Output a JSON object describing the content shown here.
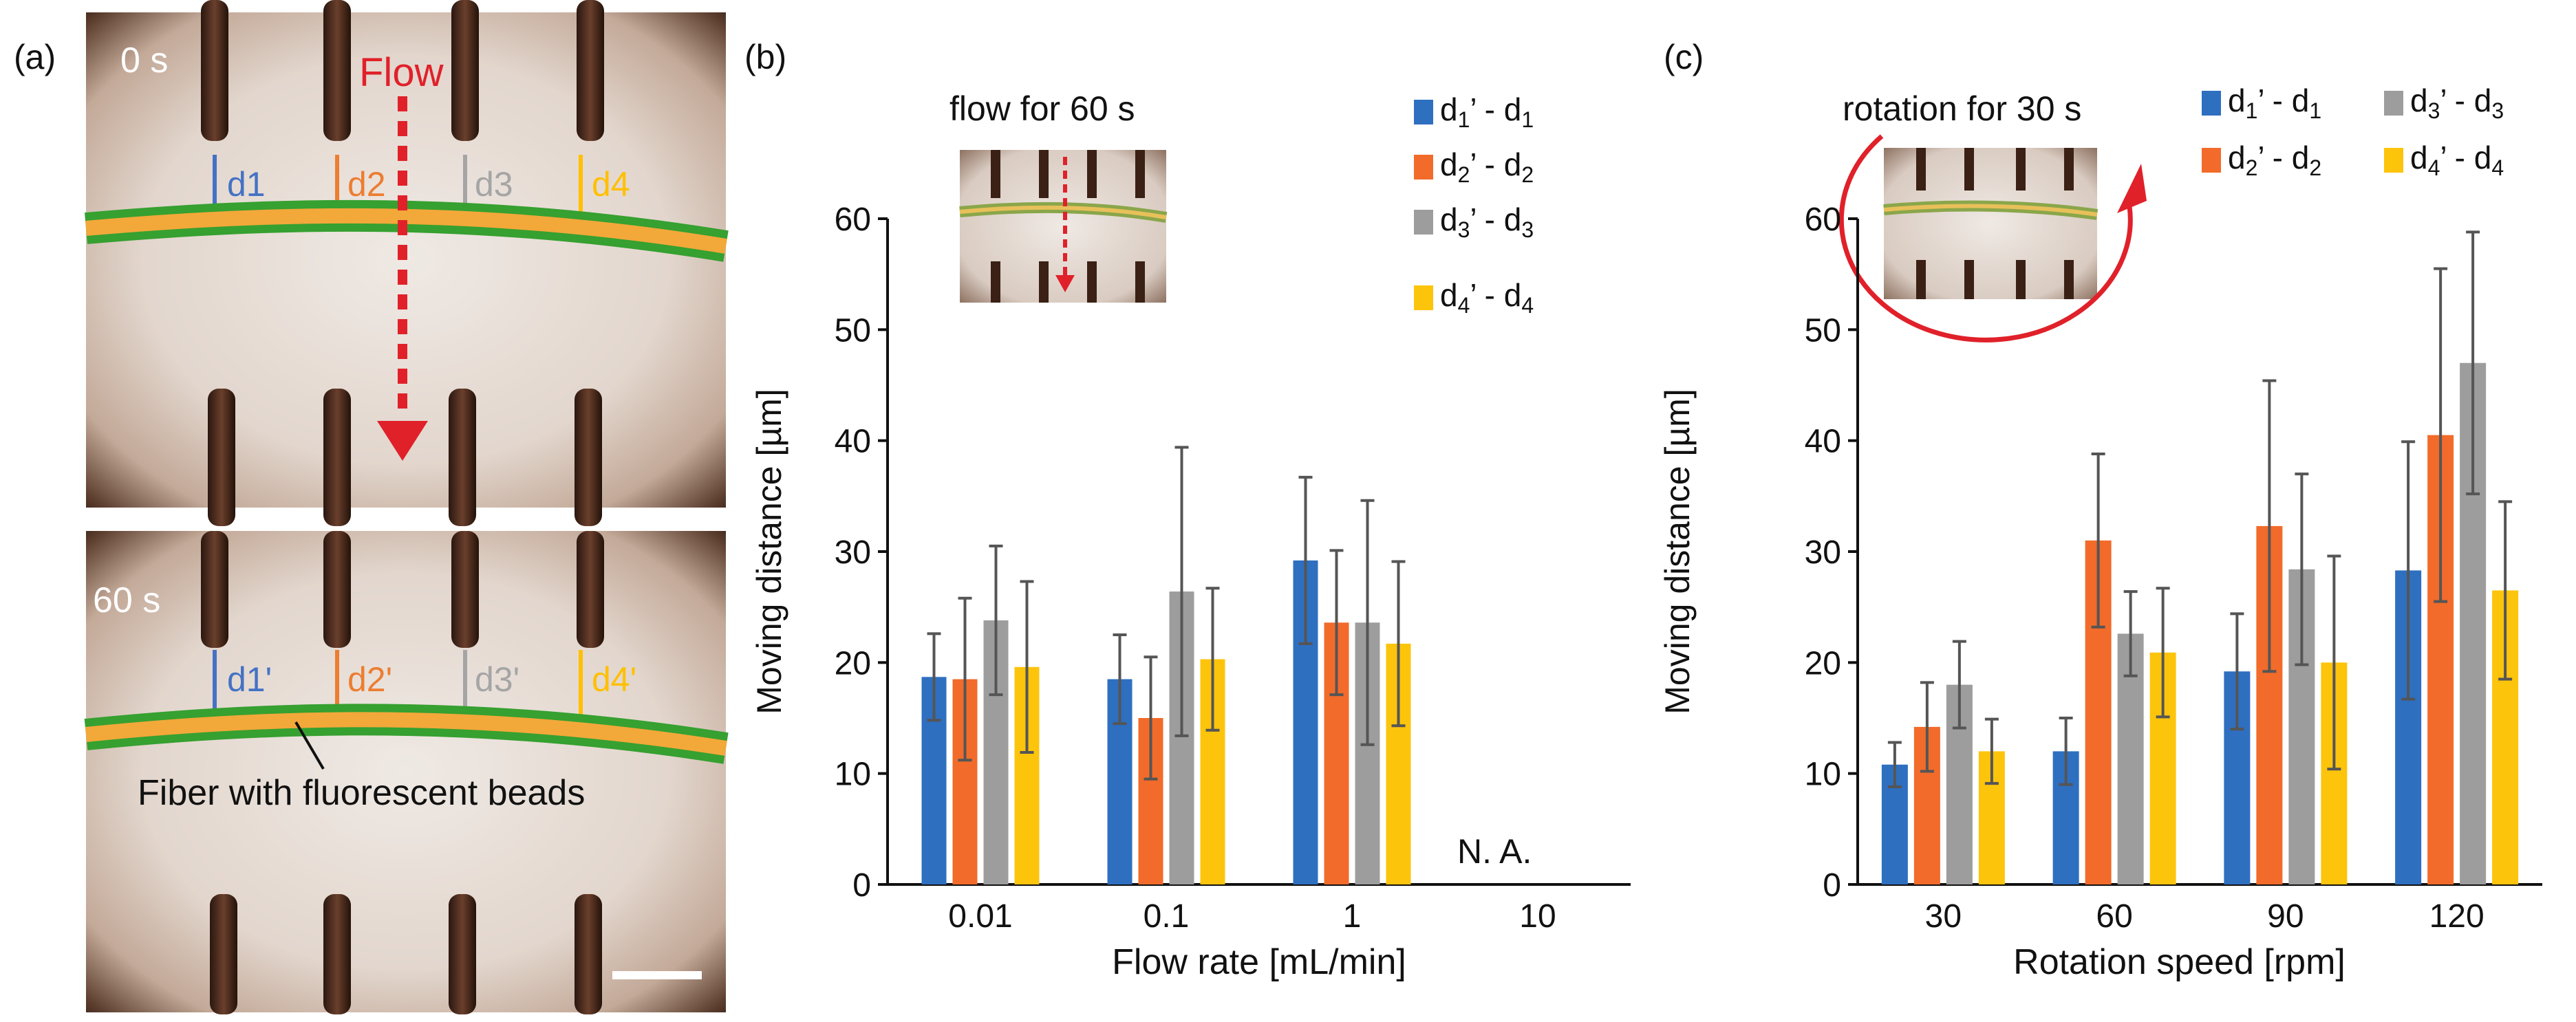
{
  "panel_a": {
    "label": "(a)",
    "top_time": "0 s",
    "bottom_time": "60 s",
    "flow_label": "Flow",
    "fiber_caption": "Fiber with fluorescent beads",
    "distance_labels_top": [
      "d1",
      "d2",
      "d3",
      "d4"
    ],
    "distance_labels_bottom": [
      "d1'",
      "d2'",
      "d3'",
      "d4'"
    ],
    "colors": [
      "#4472c4",
      "#ed7d31",
      "#a5a5a5",
      "#ffc000"
    ]
  },
  "panel_b": {
    "label": "(b)",
    "inset_caption": "flow for 60 s",
    "na_label": "N. A."
  },
  "panel_c": {
    "label": "(c)",
    "inset_caption": "rotation for 30 s"
  },
  "chart_data": [
    {
      "type": "bar",
      "panel": "b",
      "title": "",
      "xlabel": "Flow rate [mL/min]",
      "ylabel": "Moving distance [µm]",
      "ylim": [
        0,
        60
      ],
      "yticks": [
        0,
        10,
        20,
        30,
        40,
        50,
        60
      ],
      "categories": [
        "0.01",
        "0.1",
        "1",
        "10"
      ],
      "legend_position": "top-right",
      "series": [
        {
          "name": "d1’ - d1",
          "color": "#2e6fc0",
          "values": [
            18.7,
            18.5,
            29.2,
            null
          ],
          "errors": [
            3.9,
            4.0,
            7.5,
            null
          ]
        },
        {
          "name": "d2’ - d2",
          "color": "#f26b2a",
          "values": [
            18.5,
            15.0,
            23.6,
            null
          ],
          "errors": [
            7.3,
            5.5,
            6.5,
            null
          ]
        },
        {
          "name": "d3’ - d3",
          "color": "#9d9d9d",
          "values": [
            23.8,
            26.4,
            23.6,
            null
          ],
          "errors": [
            6.7,
            13.0,
            11.0,
            null
          ]
        },
        {
          "name": "d4’ - d4",
          "color": "#fdc40c",
          "values": [
            19.6,
            20.3,
            21.7,
            null
          ],
          "errors": [
            7.7,
            6.4,
            7.4,
            null
          ]
        }
      ]
    },
    {
      "type": "bar",
      "panel": "c",
      "title": "",
      "xlabel": "Rotation speed [rpm]",
      "ylabel": "Moving distance [µm]",
      "ylim": [
        0,
        60
      ],
      "yticks": [
        0,
        10,
        20,
        30,
        40,
        50,
        60
      ],
      "categories": [
        "30",
        "60",
        "90",
        "120"
      ],
      "legend_position": "top-right",
      "series": [
        {
          "name": "d1’ - d1",
          "color": "#2e6fc0",
          "values": [
            10.8,
            12.0,
            19.2,
            28.3
          ],
          "errors": [
            2.0,
            3.0,
            5.2,
            11.6
          ]
        },
        {
          "name": "d2’ - d2",
          "color": "#f26b2a",
          "values": [
            14.2,
            31.0,
            32.3,
            40.5
          ],
          "errors": [
            4.0,
            7.8,
            13.1,
            15.0
          ]
        },
        {
          "name": "d3’ - d3",
          "color": "#9d9d9d",
          "values": [
            18.0,
            22.6,
            28.4,
            47.0
          ],
          "errors": [
            3.9,
            3.8,
            8.6,
            11.8
          ]
        },
        {
          "name": "d4’ - d4",
          "color": "#fdc40c",
          "values": [
            12.0,
            20.9,
            20.0,
            26.5
          ],
          "errors": [
            2.9,
            5.8,
            9.6,
            8.0
          ]
        }
      ]
    }
  ]
}
